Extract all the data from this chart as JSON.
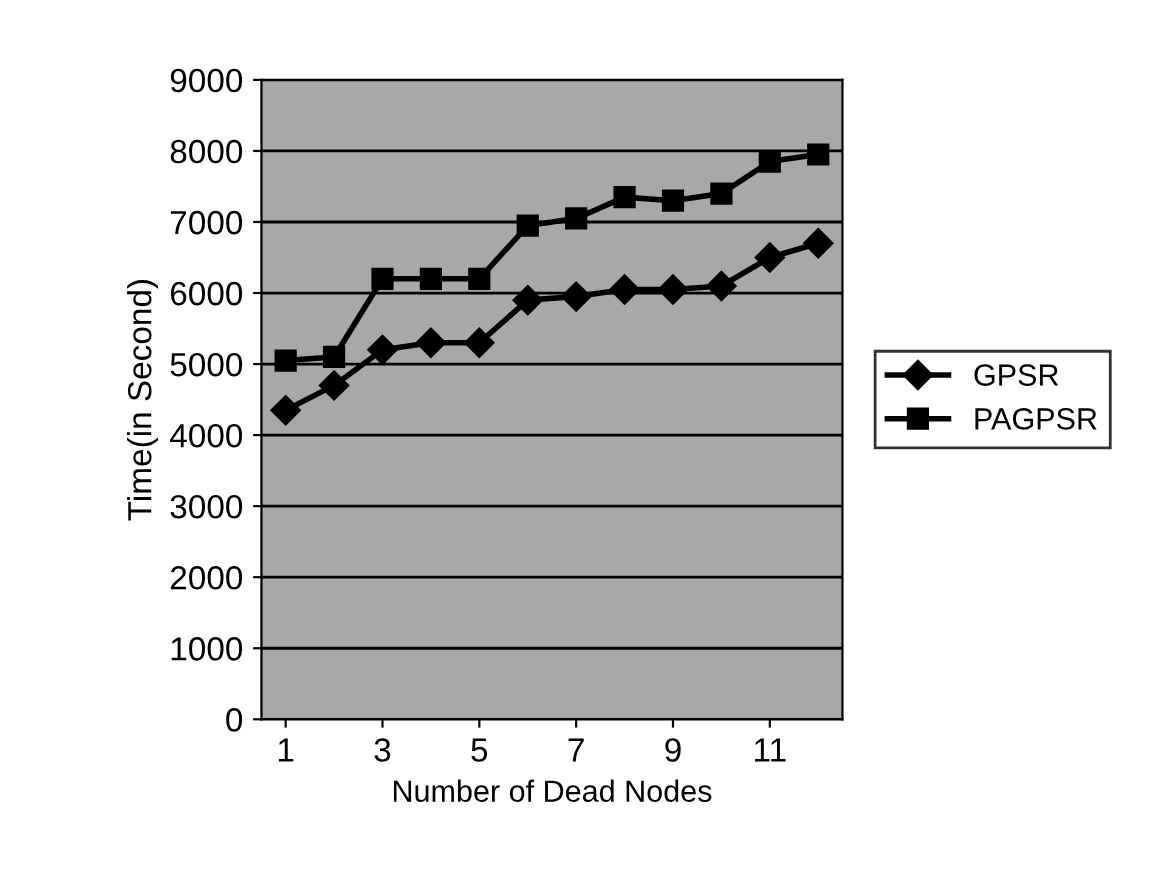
{
  "chart_data": {
    "type": "line",
    "xlabel": "Number of Dead Nodes",
    "ylabel": "Time(in Second)",
    "x": [
      1,
      2,
      3,
      4,
      5,
      6,
      7,
      8,
      9,
      10,
      11,
      12
    ],
    "xlim": [
      0.5,
      12.5
    ],
    "xticks": [
      1,
      3,
      5,
      7,
      9,
      11
    ],
    "ylim": [
      0,
      9000
    ],
    "yticks": [
      0,
      1000,
      2000,
      3000,
      4000,
      5000,
      6000,
      7000,
      8000,
      9000
    ],
    "grid": "y",
    "legend": "right",
    "line_style": "solid",
    "series": [
      {
        "name": "GPSR",
        "color": "#000000",
        "marker": "diamond",
        "values": [
          4350,
          4700,
          5200,
          5300,
          5300,
          5900,
          5950,
          6050,
          6050,
          6100,
          6500,
          6700
        ]
      },
      {
        "name": "PAGPSR",
        "color": "#000000",
        "marker": "square",
        "values": [
          5050,
          5100,
          6200,
          6200,
          6200,
          6950,
          7050,
          7350,
          7300,
          7400,
          7850,
          7950
        ]
      }
    ]
  }
}
